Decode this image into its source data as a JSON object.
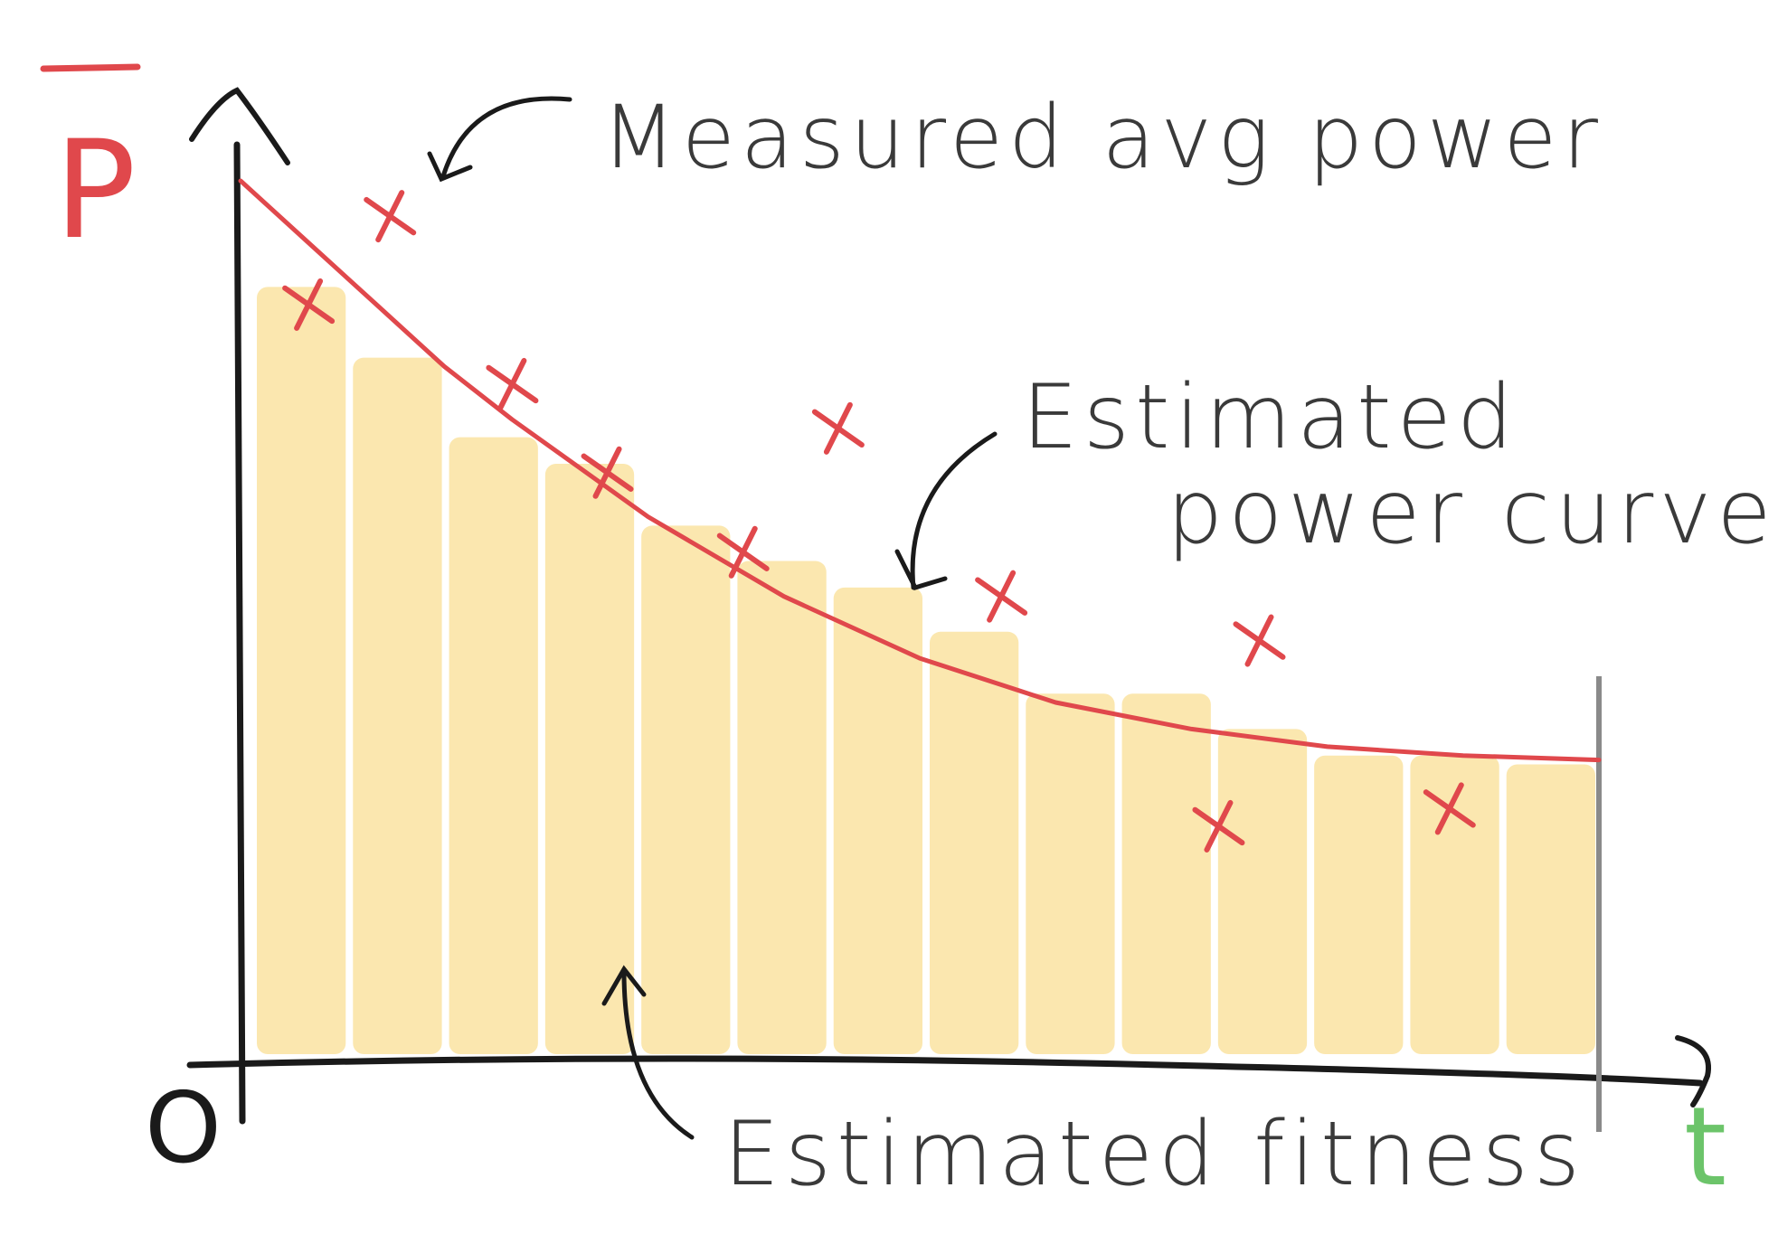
{
  "axes": {
    "y_label": "P",
    "x_label": "t",
    "origin_label": "O",
    "y_label_color": "#e0484c",
    "x_label_color": "#6cc46a"
  },
  "annotations": {
    "measured": "Measured avg power",
    "curve_line1": "Estimated",
    "curve_line2": "power curve",
    "fitness": "Estimated fitness"
  },
  "colors": {
    "curve": "#e0484c",
    "markers": "#e0484c",
    "bars": "#fbe4a6",
    "ink": "#1a1a1a",
    "text": "#3a3a3a",
    "end_line": "#8a8a8a"
  },
  "chart_data": {
    "type": "bar",
    "bars": [
      0.88,
      0.8,
      0.71,
      0.68,
      0.61,
      0.57,
      0.54,
      0.49,
      0.42,
      0.42,
      0.38,
      0.35,
      0.35,
      0.34
    ],
    "curve": [
      [
        0.0,
        1.0
      ],
      [
        0.05,
        0.93
      ],
      [
        0.1,
        0.86
      ],
      [
        0.15,
        0.79
      ],
      [
        0.2,
        0.73
      ],
      [
        0.3,
        0.62
      ],
      [
        0.4,
        0.53
      ],
      [
        0.5,
        0.46
      ],
      [
        0.6,
        0.41
      ],
      [
        0.7,
        0.38
      ],
      [
        0.8,
        0.36
      ],
      [
        0.9,
        0.35
      ],
      [
        1.0,
        0.345
      ]
    ],
    "measured_points": [
      [
        0.05,
        0.86
      ],
      [
        0.11,
        0.96
      ],
      [
        0.2,
        0.77
      ],
      [
        0.27,
        0.67
      ],
      [
        0.37,
        0.58
      ],
      [
        0.44,
        0.72
      ],
      [
        0.56,
        0.53
      ],
      [
        0.75,
        0.48
      ],
      [
        0.72,
        0.27
      ],
      [
        0.89,
        0.29
      ]
    ]
  }
}
